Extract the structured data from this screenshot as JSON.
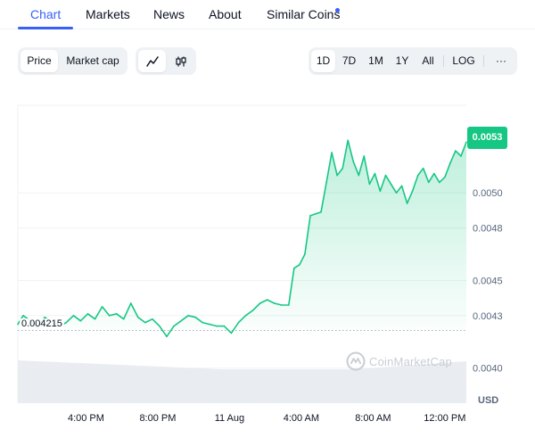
{
  "tabs": [
    {
      "label": "Chart",
      "active": true
    },
    {
      "label": "Markets",
      "active": false
    },
    {
      "label": "News",
      "active": false
    },
    {
      "label": "About",
      "active": false
    },
    {
      "label": "Similar Coins",
      "active": false
    }
  ],
  "toolbar": {
    "metric_buttons": [
      {
        "label": "Price",
        "active": true
      },
      {
        "label": "Market cap",
        "active": false
      }
    ],
    "chart_type_icons": [
      "line-chart-icon",
      "candlestick-icon"
    ],
    "ranges": [
      {
        "label": "1D",
        "active": true
      },
      {
        "label": "7D",
        "active": false
      },
      {
        "label": "1M",
        "active": false
      },
      {
        "label": "1Y",
        "active": false
      },
      {
        "label": "All",
        "active": false
      }
    ],
    "log_label": "LOG",
    "more_label": "···"
  },
  "colors": {
    "accent": "#3861fb",
    "up": "#16c784",
    "down": "#ea3943",
    "grid": "#eff2f5",
    "volume": "#e9ecf0",
    "watermark": "#c7cdd6"
  },
  "chart_data": {
    "type": "line",
    "title": "",
    "currency_label": "USD",
    "current_price": "0.0053",
    "open_price": "0.004215",
    "watermark": "CoinMarketCap",
    "ylim": [
      0.0038,
      0.0055
    ],
    "y_ticks": [
      0.004,
      0.0043,
      0.0045,
      0.0048,
      0.005
    ],
    "y_tick_labels": [
      "0.0040",
      "0.0043",
      "0.0045",
      "0.0048",
      "0.0050"
    ],
    "x_ticks": [
      {
        "t": 4.0,
        "label": "4:00 PM"
      },
      {
        "t": 8.0,
        "label": "8:00 PM"
      },
      {
        "t": 12.0,
        "label": "11 Aug"
      },
      {
        "t": 16.0,
        "label": "4:00 AM"
      },
      {
        "t": 20.0,
        "label": "8:00 AM"
      },
      {
        "t": 24.0,
        "label": "12:00 PM"
      }
    ],
    "xlim": [
      0.2,
      25.2
    ],
    "baseline": 0.004215,
    "series": [
      {
        "x": [
          0.2,
          0.5,
          0.9,
          1.3,
          1.7,
          2.1,
          2.5,
          2.9,
          3.3,
          3.7,
          4.1,
          4.5,
          4.9,
          5.3,
          5.7,
          6.1,
          6.5,
          6.9,
          7.3,
          7.7,
          8.1,
          8.5,
          8.9,
          9.3,
          9.7,
          10.1,
          10.5,
          10.9,
          11.3,
          11.7,
          12.1,
          12.5,
          12.9,
          13.3,
          13.7,
          14.1,
          14.5,
          14.9,
          15.3,
          15.6,
          15.9,
          16.2,
          16.5,
          16.8,
          17.1,
          17.4,
          17.7,
          18.0,
          18.3,
          18.6,
          18.9,
          19.2,
          19.5,
          19.8,
          20.1,
          20.4,
          20.7,
          21.0,
          21.3,
          21.6,
          21.9,
          22.2,
          22.5,
          22.8,
          23.1,
          23.4,
          23.7,
          24.0,
          24.3,
          24.6,
          24.9,
          25.2
        ],
        "y": [
          0.00425,
          0.0043,
          0.00427,
          0.00423,
          0.00429,
          0.00426,
          0.00424,
          0.00426,
          0.0043,
          0.00427,
          0.00431,
          0.00428,
          0.00435,
          0.0043,
          0.00431,
          0.00428,
          0.00437,
          0.00429,
          0.00426,
          0.00428,
          0.00424,
          0.00418,
          0.00424,
          0.00427,
          0.0043,
          0.00429,
          0.00426,
          0.00425,
          0.00424,
          0.00424,
          0.0042,
          0.00426,
          0.0043,
          0.00433,
          0.00437,
          0.00439,
          0.00437,
          0.00436,
          0.00436,
          0.00457,
          0.00459,
          0.00465,
          0.00487,
          0.00488,
          0.00489,
          0.00506,
          0.00523,
          0.0051,
          0.00514,
          0.0053,
          0.00518,
          0.0051,
          0.00521,
          0.00505,
          0.00511,
          0.00501,
          0.0051,
          0.00505,
          0.005,
          0.00504,
          0.00494,
          0.00501,
          0.0051,
          0.00514,
          0.00506,
          0.00511,
          0.00506,
          0.00509,
          0.00517,
          0.00524,
          0.00521,
          0.00529
        ]
      }
    ]
  }
}
